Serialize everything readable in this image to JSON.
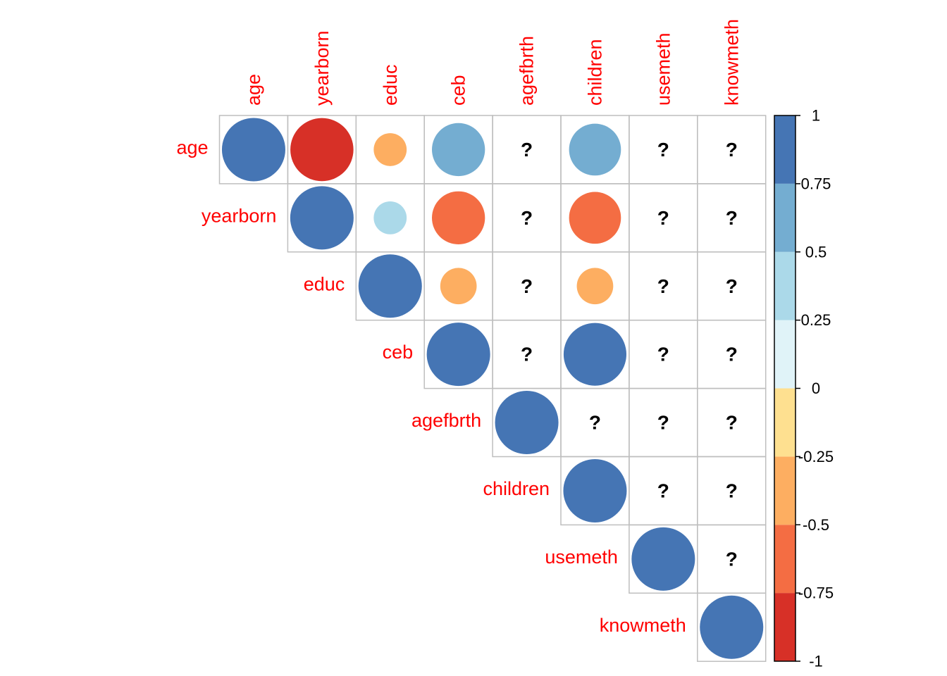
{
  "chart_data": {
    "type": "heatmap",
    "variables": [
      "age",
      "yearborn",
      "educ",
      "ceb",
      "agefbrth",
      "children",
      "usemeth",
      "knowmeth"
    ],
    "missing_symbol": "?",
    "cells": [
      {
        "row": "age",
        "col": "age",
        "value": 1.0
      },
      {
        "row": "age",
        "col": "yearborn",
        "value": -0.99
      },
      {
        "row": "age",
        "col": "educ",
        "value": -0.27
      },
      {
        "row": "age",
        "col": "ceb",
        "value": 0.7
      },
      {
        "row": "age",
        "col": "agefbrth",
        "value": null
      },
      {
        "row": "age",
        "col": "children",
        "value": 0.67
      },
      {
        "row": "age",
        "col": "usemeth",
        "value": null
      },
      {
        "row": "age",
        "col": "knowmeth",
        "value": null
      },
      {
        "row": "yearborn",
        "col": "yearborn",
        "value": 1.0
      },
      {
        "row": "yearborn",
        "col": "educ",
        "value": 0.27
      },
      {
        "row": "yearborn",
        "col": "ceb",
        "value": -0.7
      },
      {
        "row": "yearborn",
        "col": "agefbrth",
        "value": null
      },
      {
        "row": "yearborn",
        "col": "children",
        "value": -0.67
      },
      {
        "row": "yearborn",
        "col": "usemeth",
        "value": null
      },
      {
        "row": "yearborn",
        "col": "knowmeth",
        "value": null
      },
      {
        "row": "educ",
        "col": "educ",
        "value": 1.0
      },
      {
        "row": "educ",
        "col": "ceb",
        "value": -0.33
      },
      {
        "row": "educ",
        "col": "agefbrth",
        "value": null
      },
      {
        "row": "educ",
        "col": "children",
        "value": -0.33
      },
      {
        "row": "educ",
        "col": "usemeth",
        "value": null
      },
      {
        "row": "educ",
        "col": "knowmeth",
        "value": null
      },
      {
        "row": "ceb",
        "col": "ceb",
        "value": 1.0
      },
      {
        "row": "ceb",
        "col": "agefbrth",
        "value": null
      },
      {
        "row": "ceb",
        "col": "children",
        "value": 0.98
      },
      {
        "row": "ceb",
        "col": "usemeth",
        "value": null
      },
      {
        "row": "ceb",
        "col": "knowmeth",
        "value": null
      },
      {
        "row": "agefbrth",
        "col": "agefbrth",
        "value": 1.0
      },
      {
        "row": "agefbrth",
        "col": "children",
        "value": null
      },
      {
        "row": "agefbrth",
        "col": "usemeth",
        "value": null
      },
      {
        "row": "agefbrth",
        "col": "knowmeth",
        "value": null
      },
      {
        "row": "children",
        "col": "children",
        "value": 1.0
      },
      {
        "row": "children",
        "col": "usemeth",
        "value": null
      },
      {
        "row": "children",
        "col": "knowmeth",
        "value": null
      },
      {
        "row": "usemeth",
        "col": "usemeth",
        "value": 1.0
      },
      {
        "row": "usemeth",
        "col": "knowmeth",
        "value": null
      },
      {
        "row": "knowmeth",
        "col": "knowmeth",
        "value": 1.0
      }
    ],
    "color_scale": {
      "ticks": [
        "1",
        "0.75",
        "0.5",
        "0.25",
        "0",
        "-0.25",
        "-0.5",
        "-0.75",
        "-1"
      ],
      "range": [
        -1,
        1
      ],
      "bands": [
        {
          "from": -1.0,
          "to": -0.75,
          "color": "#d73027"
        },
        {
          "from": -0.75,
          "to": -0.5,
          "color": "#f46d43"
        },
        {
          "from": -0.5,
          "to": -0.25,
          "color": "#fdae61"
        },
        {
          "from": -0.25,
          "to": 0.0,
          "color": "#fee090"
        },
        {
          "from": 0.0,
          "to": 0.25,
          "color": "#e0f3f8"
        },
        {
          "from": 0.25,
          "to": 0.5,
          "color": "#abd9e9"
        },
        {
          "from": 0.5,
          "to": 0.75,
          "color": "#74add1"
        },
        {
          "from": 0.75,
          "to": 1.0,
          "color": "#4575b4"
        }
      ]
    },
    "label_color": "#ff0000",
    "grid_color": "#bebebe",
    "legend_position": "right"
  }
}
